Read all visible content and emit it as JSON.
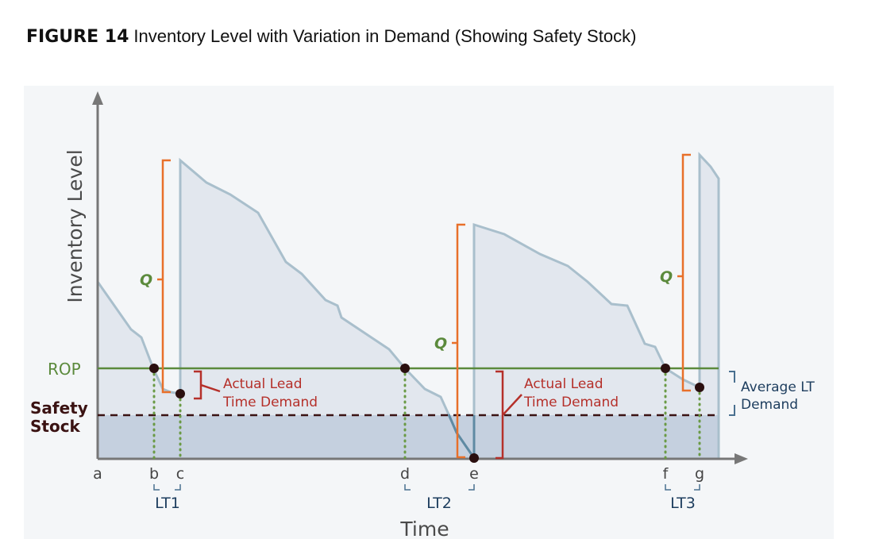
{
  "figure": {
    "number": "FIGURE 14",
    "caption": "Inventory Level with Variation in Demand (Showing Safety Stock)"
  },
  "axes": {
    "y_label": "Inventory Level",
    "x_label": "Time"
  },
  "labels": {
    "rop": "ROP",
    "safety_stock_line1": "Safety",
    "safety_stock_line2": "Stock",
    "q": "Q",
    "actual_lt_demand_line1": "Actual Lead",
    "actual_lt_demand_line2": "Time Demand",
    "average_lt_demand_line1": "Average LT",
    "average_lt_demand_line2": "Demand"
  },
  "time_points": [
    "a",
    "b",
    "c",
    "d",
    "e",
    "f",
    "g"
  ],
  "lead_times": [
    "LT1",
    "LT2",
    "LT3"
  ],
  "colors": {
    "rop": "#5b8a3c",
    "q": "#e8702a",
    "actual": "#b5302a",
    "average": "#1d3d5e",
    "curve": "#a9bfcc",
    "fill": "#e2e7ee",
    "safety": "#c5d0df"
  }
}
